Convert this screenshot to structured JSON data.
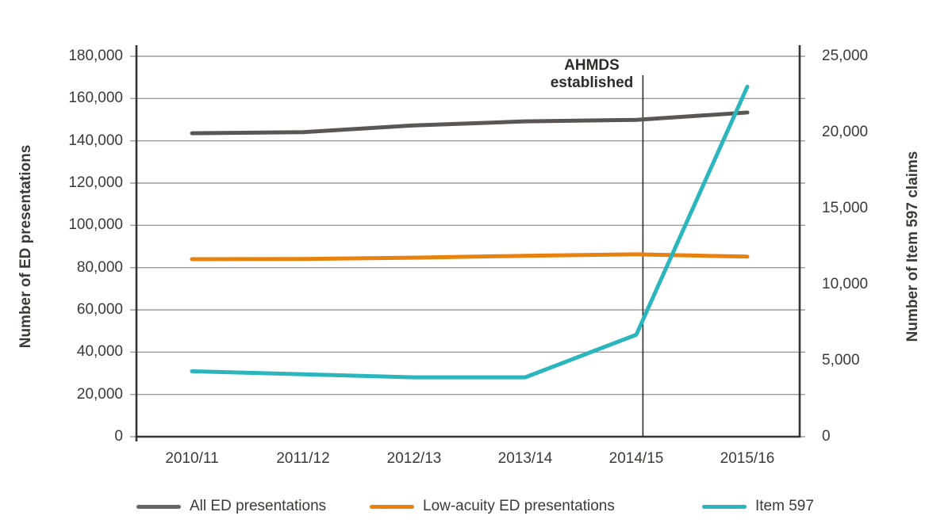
{
  "chart_data": {
    "type": "line",
    "title": "",
    "categories": [
      "2010/11",
      "2011/12",
      "2012/13",
      "2013/14",
      "2014/15",
      "2015/16"
    ],
    "series": [
      {
        "name": "All ED presentations",
        "axis": "left",
        "color": "#5b5651",
        "values": [
          143600,
          144100,
          147300,
          149200,
          149900,
          153400
        ]
      },
      {
        "name": "Low-acuity ED presentations",
        "axis": "left",
        "color": "#e8820e",
        "values": [
          84000,
          84100,
          84700,
          85600,
          86300,
          85200
        ]
      },
      {
        "name": "Item 597",
        "axis": "right",
        "color": "#2ab6bc",
        "values": [
          4300,
          4100,
          3900,
          3900,
          6700,
          23000
        ]
      }
    ],
    "left_axis": {
      "label": "Number of ED presentations",
      "min": 0,
      "max": 180000,
      "step": 20000,
      "tick_labels": [
        "0",
        "20,000",
        "40,000",
        "60,000",
        "80,000",
        "100,000",
        "120,000",
        "140,000",
        "160,000",
        "180,000"
      ]
    },
    "right_axis": {
      "label": "Number of Item 597 claims",
      "min": 0,
      "max": 25000,
      "step": 5000,
      "tick_labels": [
        "0",
        "5,000",
        "10,000",
        "15,000",
        "20,000",
        "25,000"
      ]
    },
    "x_axis": {
      "tick_labels": [
        "2010/11",
        "2011/12",
        "2012/13",
        "2013/14",
        "2014/15",
        "2015/16"
      ]
    },
    "annotation": {
      "label_line1": "AHMDS",
      "label_line2": "established",
      "x_category_offset": 4.06
    },
    "grid": {
      "horizontal": true,
      "color": "#9b9b9b"
    },
    "axis_color": "#37332f",
    "annotation_line_color": "#2e2b28",
    "text_color": "#3d3935",
    "legend_position": "bottom"
  },
  "legend": {
    "items": [
      {
        "label": "All ED presentations",
        "color": "#6b6661"
      },
      {
        "label": "Low-acuity ED presentations",
        "color": "#e8820e"
      },
      {
        "label": "Item 597",
        "color": "#2ab6bc"
      }
    ]
  }
}
